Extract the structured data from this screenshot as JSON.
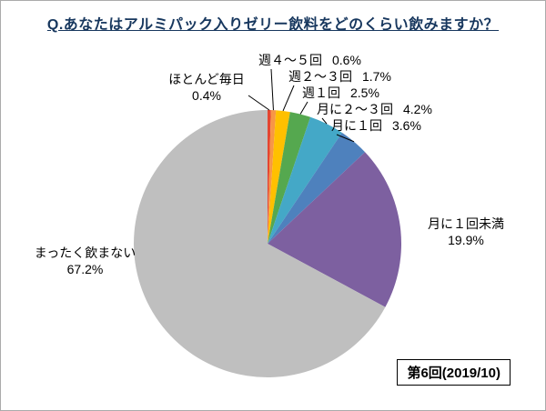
{
  "title": "Q.あなたはアルミパック入りゼリー飲料をどのくらい飲みますか？",
  "footer": {
    "round_label": "第6回(2019/10)"
  },
  "chart_data": {
    "type": "pie",
    "title": "Q.あなたはアルミパック入りゼリー飲料をどのくらい飲みますか？",
    "units": "%",
    "start_angle_deg": -90,
    "direction": "clockwise",
    "legend": "none (callout labels)",
    "slices": [
      {
        "label": "ほとんど毎日",
        "value": 0.4,
        "pct_label": "0.4%",
        "color": "#E54530"
      },
      {
        "label": "週４～５回",
        "value": 0.6,
        "pct_label": "0.6%",
        "color": "#F79646"
      },
      {
        "label": "週２～３回",
        "value": 1.7,
        "pct_label": "1.7%",
        "color": "#FFC000"
      },
      {
        "label": "週１回",
        "value": 2.5,
        "pct_label": "2.5%",
        "color": "#55A84F"
      },
      {
        "label": "月に２～３回",
        "value": 4.2,
        "pct_label": "4.2%",
        "color": "#44A8C7"
      },
      {
        "label": "月に１回",
        "value": 3.6,
        "pct_label": "3.6%",
        "color": "#4E81BD"
      },
      {
        "label": "月に１回未満",
        "value": 19.9,
        "pct_label": "19.9%",
        "color": "#7D60A0"
      },
      {
        "label": "まったく飲まない",
        "value": 67.2,
        "pct_label": "67.2%",
        "color": "#BFBFBF"
      }
    ]
  }
}
